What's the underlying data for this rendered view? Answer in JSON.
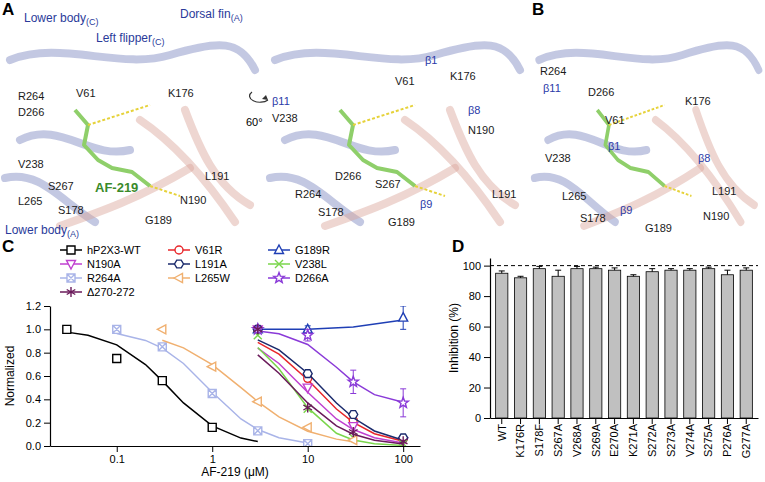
{
  "panel_letters": [
    "A",
    "B",
    "C",
    "D"
  ],
  "rotation_label": "60°",
  "structure_views": [
    {
      "labels": [
        {
          "text": "Lower body",
          "sub": "(C)",
          "kind": "region"
        },
        {
          "text": "Left flipper",
          "sub": "(C)",
          "kind": "region"
        },
        {
          "text": "Dorsal fin",
          "sub": "(A)",
          "kind": "region"
        },
        {
          "text": "R264",
          "kind": "residue"
        },
        {
          "text": "D266",
          "kind": "residue"
        },
        {
          "text": "V61",
          "kind": "residue"
        },
        {
          "text": "K176",
          "kind": "residue"
        },
        {
          "text": "V238",
          "kind": "residue"
        },
        {
          "text": "L265",
          "kind": "residue"
        },
        {
          "text": "S267",
          "kind": "residue"
        },
        {
          "text": "S178",
          "kind": "residue"
        },
        {
          "text": "AF-219",
          "kind": "ligand"
        },
        {
          "text": "L191",
          "kind": "residue"
        },
        {
          "text": "N190",
          "kind": "residue"
        },
        {
          "text": "G189",
          "kind": "residue"
        },
        {
          "text": "Lower body",
          "sub": "(A)",
          "kind": "region"
        }
      ]
    },
    {
      "labels": [
        {
          "text": "V61",
          "kind": "residue"
        },
        {
          "text": "K176",
          "kind": "residue"
        },
        {
          "text": "β1",
          "kind": "strand"
        },
        {
          "text": "β11",
          "kind": "strand"
        },
        {
          "text": "V238",
          "kind": "residue"
        },
        {
          "text": "β8",
          "kind": "strand"
        },
        {
          "text": "N190",
          "kind": "residue"
        },
        {
          "text": "D266",
          "kind": "residue"
        },
        {
          "text": "R264",
          "kind": "residue"
        },
        {
          "text": "S178",
          "kind": "residue"
        },
        {
          "text": "S267",
          "kind": "residue"
        },
        {
          "text": "G189",
          "kind": "residue"
        },
        {
          "text": "β9",
          "kind": "strand"
        },
        {
          "text": "L191",
          "kind": "residue"
        }
      ]
    },
    {
      "labels": [
        {
          "text": "R264",
          "kind": "residue"
        },
        {
          "text": "β11",
          "kind": "strand"
        },
        {
          "text": "D266",
          "kind": "residue"
        },
        {
          "text": "K176",
          "kind": "residue"
        },
        {
          "text": "V61",
          "kind": "residue"
        },
        {
          "text": "β1",
          "kind": "strand"
        },
        {
          "text": "V238",
          "kind": "residue"
        },
        {
          "text": "β8",
          "kind": "strand"
        },
        {
          "text": "L265",
          "kind": "residue"
        },
        {
          "text": "L191",
          "kind": "residue"
        },
        {
          "text": "S178",
          "kind": "residue"
        },
        {
          "text": "N190",
          "kind": "residue"
        },
        {
          "text": "β9",
          "kind": "strand"
        },
        {
          "text": "G189",
          "kind": "residue"
        }
      ]
    }
  ],
  "chart_data": [
    {
      "type": "scatter",
      "xlabel": "AF-219 (μM)",
      "ylabel": "Normalized",
      "log": "x",
      "grid": false,
      "legend": "top",
      "xlim": [
        0.02,
        150
      ],
      "xticks": [
        0.1,
        1,
        10,
        100
      ],
      "ylim": [
        0,
        1.2
      ],
      "yticks": [
        {
          "value": 0,
          "label": "0.0"
        },
        0.2,
        0.4,
        0.6,
        0.8,
        {
          "value": 1,
          "label": "1.0"
        },
        1.2
      ],
      "series": [
        {
          "name": "hP2X3-WT",
          "color": "#000000",
          "marker": "square",
          "x": [
            0.03,
            0.1,
            0.3,
            1
          ],
          "values": [
            1.0,
            0.75,
            0.56,
            0.16
          ],
          "fit_x": [
            0.03,
            0.05,
            0.1,
            0.2,
            0.3,
            0.5,
            1,
            2,
            3
          ],
          "fit_y": [
            0.976,
            0.949,
            0.867,
            0.698,
            0.558,
            0.369,
            0.172,
            0.068,
            0.038
          ]
        },
        {
          "name": "V61R",
          "color": "#e8262a",
          "marker": "circle",
          "x": [
            3,
            10,
            30,
            100
          ],
          "values": [
            1.0,
            0.58,
            0.22,
            0.06
          ],
          "fit_x": [
            3,
            5,
            10,
            20,
            30,
            50,
            100
          ],
          "fit_y": [
            0.889,
            0.788,
            0.568,
            0.317,
            0.202,
            0.105,
            0.04
          ]
        },
        {
          "name": "G189R",
          "color": "#1f3fb5",
          "marker": "triangle-up",
          "x": [
            3,
            10,
            100
          ],
          "values": [
            1.0,
            1.0,
            1.1
          ],
          "errors": [
            0.02,
            0.03,
            0.1
          ],
          "fit_x": [
            3,
            10,
            30,
            100
          ],
          "fit_y": [
            1.0,
            1.0,
            1.02,
            1.08
          ]
        },
        {
          "name": "N190A",
          "color": "#c040d0",
          "marker": "triangle-down",
          "x": [
            3,
            10,
            30,
            100
          ],
          "values": [
            1.0,
            0.5,
            0.17,
            0.04
          ],
          "fit_x": [
            3,
            5,
            10,
            20,
            30,
            50,
            100
          ],
          "fit_y": [
            0.839,
            0.707,
            0.461,
            0.232,
            0.141,
            0.071,
            0.026
          ]
        },
        {
          "name": "L191A",
          "color": "#1a2a6c",
          "marker": "hexagon",
          "x": [
            3,
            10,
            30,
            100
          ],
          "values": [
            1.0,
            0.62,
            0.27,
            0.07
          ],
          "fit_x": [
            3,
            5,
            10,
            20,
            30,
            50,
            100
          ],
          "fit_y": [
            0.91,
            0.824,
            0.624,
            0.369,
            0.242,
            0.129,
            0.05
          ]
        },
        {
          "name": "V238L",
          "color": "#7ad64b",
          "marker": "x",
          "x": [
            3,
            10,
            30,
            100
          ],
          "values": [
            0.95,
            0.32,
            0.07,
            0.02
          ],
          "fit_x": [
            3,
            5,
            10,
            20,
            30,
            50,
            100
          ],
          "fit_y": [
            0.845,
            0.662,
            0.329,
            0.109,
            0.052,
            0.019,
            0.005
          ]
        },
        {
          "name": "R264A",
          "color": "#a9b4e8",
          "marker": "square-x",
          "x": [
            0.1,
            0.3,
            1,
            3,
            10
          ],
          "values": [
            1.0,
            0.85,
            0.45,
            0.13,
            0.02
          ],
          "fit_x": [
            0.1,
            0.2,
            0.3,
            0.5,
            1,
            2,
            3,
            5,
            10
          ],
          "fit_y": [
            0.964,
            0.905,
            0.839,
            0.707,
            0.461,
            0.232,
            0.141,
            0.071,
            0.026
          ]
        },
        {
          "name": "L265W",
          "color": "#f0b070",
          "marker": "triangle-left",
          "x": [
            0.3,
            1,
            3,
            10,
            30
          ],
          "values": [
            1.0,
            0.68,
            0.38,
            0.16,
            0.05
          ],
          "fit_x": [
            0.3,
            0.5,
            1,
            2,
            3,
            5,
            10,
            20,
            30
          ],
          "fit_y": [
            0.907,
            0.841,
            0.697,
            0.5,
            0.381,
            0.25,
            0.127,
            0.059,
            0.037
          ]
        },
        {
          "name": "D266A",
          "color": "#8a3ad8",
          "marker": "star",
          "x": [
            3,
            10,
            30,
            100
          ],
          "values": [
            1.0,
            0.95,
            0.55,
            0.37
          ],
          "errors": [
            0.02,
            0.05,
            0.1,
            0.12
          ],
          "fit_x": [
            3,
            5,
            10,
            20,
            30,
            50,
            100
          ],
          "fit_y": [
            0.986,
            0.962,
            0.87,
            0.675,
            0.55,
            0.44,
            0.375
          ]
        },
        {
          "name": "Δ270-272",
          "color": "#6a1a5a",
          "marker": "asterisk",
          "x": [
            3,
            10,
            30,
            100
          ],
          "values": [
            1.0,
            0.33,
            0.12,
            0.04
          ],
          "fit_x": [
            3,
            5,
            10,
            20,
            30,
            50,
            100
          ],
          "fit_y": [
            0.781,
            0.624,
            0.369,
            0.172,
            0.101,
            0.05,
            0.018
          ]
        }
      ]
    },
    {
      "type": "bar",
      "ylabel": "Inhibition (%)",
      "grid": false,
      "color": "#c0c0c0",
      "categories": [
        "WT",
        "K176R",
        "S178F",
        "S267A",
        "V268A",
        "S269A",
        "E270A",
        "K271A",
        "S272A",
        "S273A",
        "V274A",
        "S275A",
        "P276A",
        "G277A"
      ],
      "values": [
        95,
        92,
        98,
        93,
        98,
        98,
        97,
        93,
        96,
        97,
        97,
        98,
        94,
        97
      ],
      "errors": [
        1.5,
        1,
        1.5,
        4,
        1.5,
        1,
        1.5,
        1,
        2,
        1,
        1,
        1,
        3,
        1.5
      ],
      "reference_line": 100,
      "ylim": [
        0,
        105
      ],
      "yticks": [
        0,
        20,
        40,
        60,
        80,
        100
      ]
    }
  ]
}
